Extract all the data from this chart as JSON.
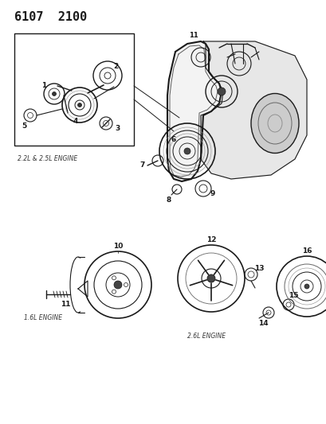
{
  "title": "6107  2100",
  "title_fontsize": 11,
  "title_fontweight": "bold",
  "bg_color": "#ffffff",
  "text_color": "#1a1a1a",
  "line_color": "#1a1a1a",
  "label_2_2L": "2.2L & 2.5L ENGINE",
  "label_1_6L": "1.6L ENGINE",
  "label_2_6L": "2.6L ENGINE",
  "fig_w": 4.1,
  "fig_h": 5.33,
  "dpi": 100
}
